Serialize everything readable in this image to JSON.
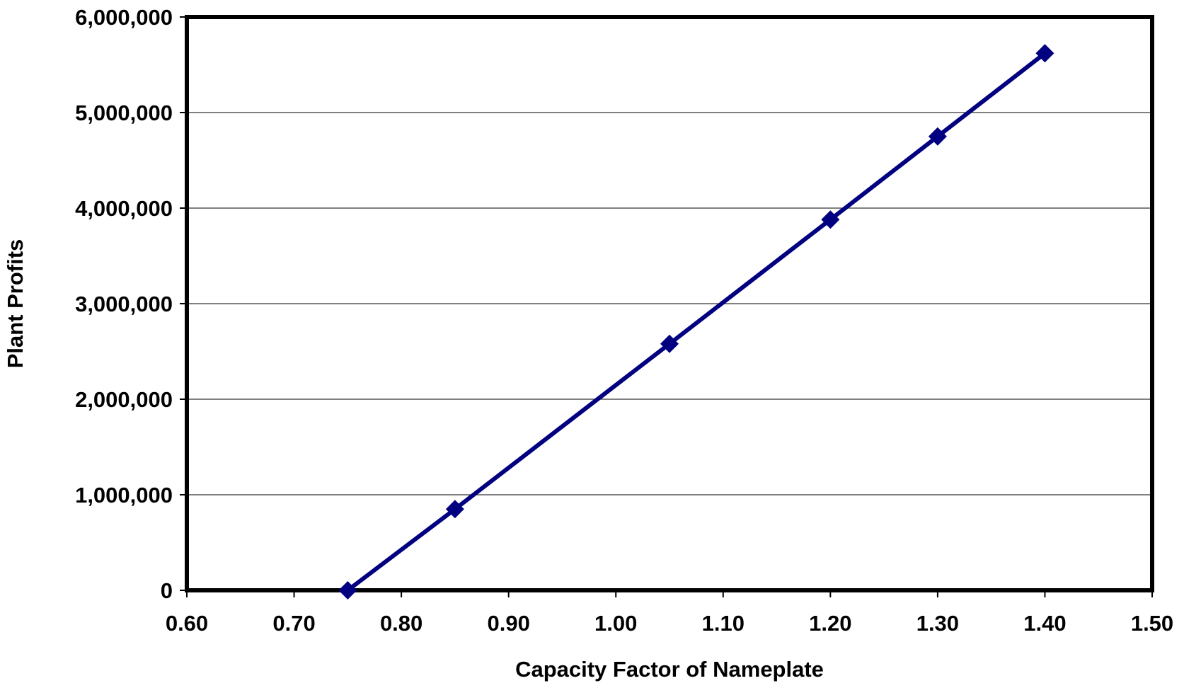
{
  "chart_data": {
    "type": "line",
    "title": "",
    "xlabel": "Capacity Factor of Nameplate",
    "ylabel": "Plant Profits",
    "xlim": [
      0.6,
      1.5
    ],
    "ylim": [
      0,
      6000000
    ],
    "x_ticks": [
      "0.60",
      "0.70",
      "0.80",
      "0.90",
      "1.00",
      "1.10",
      "1.20",
      "1.30",
      "1.40",
      "1.50"
    ],
    "y_ticks": [
      "0",
      "1,000,000",
      "2,000,000",
      "3,000,000",
      "4,000,000",
      "5,000,000",
      "6,000,000"
    ],
    "grid": "horizontal",
    "legend": "none",
    "series": [
      {
        "x": [
          0.75,
          0.85,
          1.05,
          1.2,
          1.3,
          1.4
        ],
        "y": [
          0,
          850000,
          2580000,
          3880000,
          4750000,
          5620000
        ],
        "color": "#000080",
        "marker": "diamond"
      }
    ]
  }
}
